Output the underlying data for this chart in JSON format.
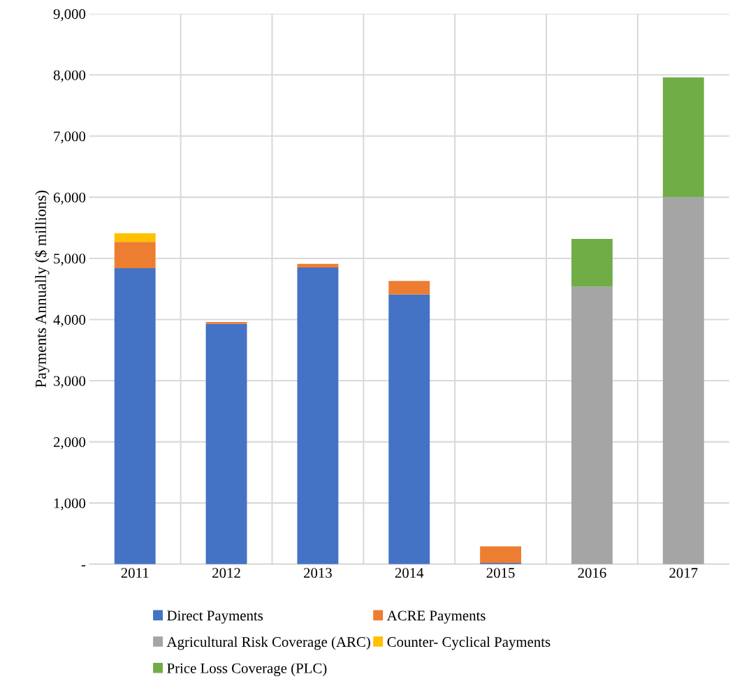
{
  "chart_data": {
    "type": "bar",
    "stacked": true,
    "ylabel": "Payments Annually ($ millions)",
    "categories": [
      "2011",
      "2012",
      "2013",
      "2014",
      "2015",
      "2016",
      "2017"
    ],
    "series": [
      {
        "name": "Direct Payments",
        "color": "#4472c4",
        "values": [
          4840,
          3930,
          4850,
          4410,
          20,
          0,
          0
        ]
      },
      {
        "name": "ACRE Payments",
        "color": "#ed7d31",
        "values": [
          430,
          30,
          60,
          220,
          270,
          null,
          0
        ]
      },
      {
        "name": "Agricultural Risk Coverage (ARC)",
        "color": "#a5a5a5",
        "values": [
          0,
          0,
          0,
          0,
          0,
          4540,
          6000
        ]
      },
      {
        "name": "Counter- Cyclical Payments",
        "color": "#ffc000",
        "values": [
          140,
          0,
          0,
          0,
          0,
          0,
          0
        ]
      },
      {
        "name": "Price Loss Coverage (PLC)",
        "color": "#70ad47",
        "values": [
          0,
          0,
          0,
          0,
          0,
          780,
          1960
        ]
      }
    ],
    "ylim": [
      0,
      9000
    ],
    "yticks": [
      {
        "value": 0,
        "label": "-"
      },
      {
        "value": 1000,
        "label": "1,000"
      },
      {
        "value": 2000,
        "label": "2,000"
      },
      {
        "value": 3000,
        "label": "3,000"
      },
      {
        "value": 4000,
        "label": "4,000"
      },
      {
        "value": 5000,
        "label": "5,000"
      },
      {
        "value": 6000,
        "label": "6,000"
      },
      {
        "value": 7000,
        "label": "7,000"
      },
      {
        "value": 8000,
        "label": "8,000"
      },
      {
        "value": 9000,
        "label": "9,000"
      }
    ],
    "grid": true,
    "legend": "bottom"
  }
}
